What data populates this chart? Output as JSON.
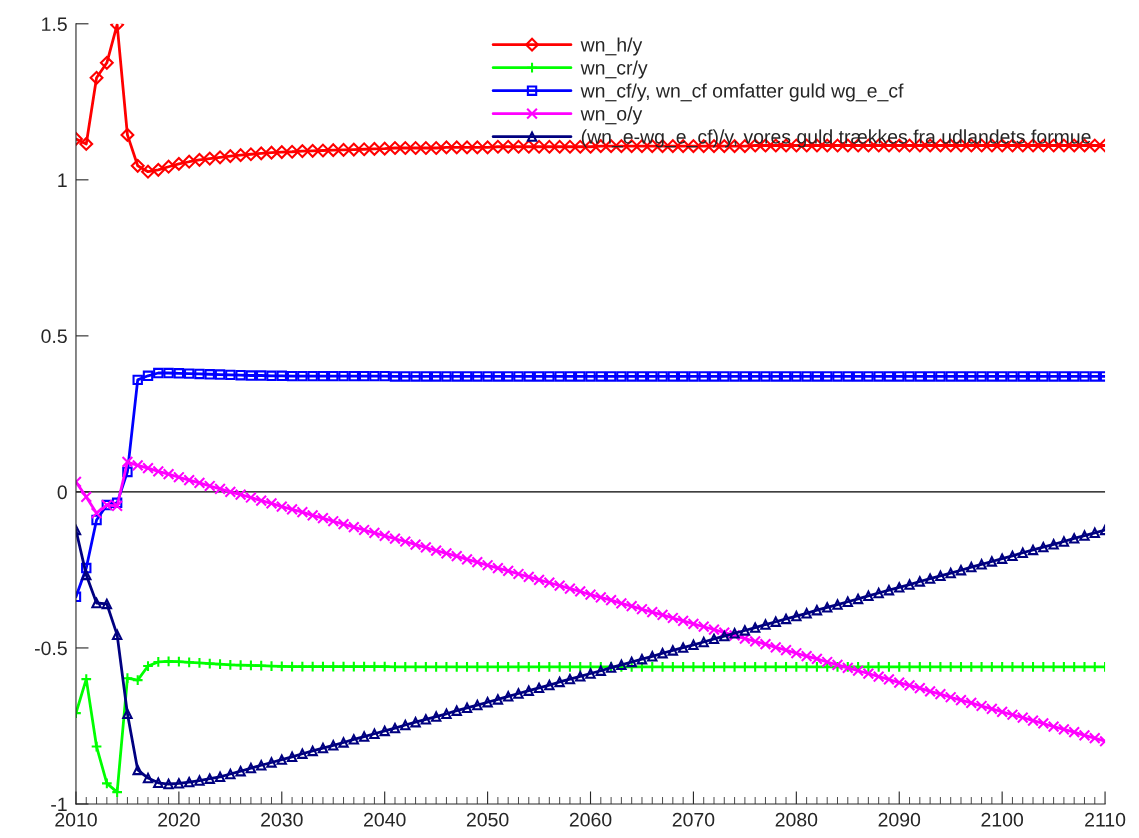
{
  "chart_data": {
    "type": "line",
    "x": [
      2010,
      2011,
      2012,
      2013,
      2014,
      2015,
      2016,
      2017,
      2018,
      2019,
      2020,
      2021,
      2022,
      2023,
      2024,
      2025,
      2026,
      2027,
      2028,
      2029,
      2030,
      2031,
      2032,
      2033,
      2034,
      2035,
      2036,
      2037,
      2038,
      2039,
      2040,
      2041,
      2042,
      2043,
      2044,
      2045,
      2046,
      2047,
      2048,
      2049,
      2050,
      2051,
      2052,
      2053,
      2054,
      2055,
      2056,
      2057,
      2058,
      2059,
      2060,
      2061,
      2062,
      2063,
      2064,
      2065,
      2066,
      2067,
      2068,
      2069,
      2070,
      2071,
      2072,
      2073,
      2074,
      2075,
      2076,
      2077,
      2078,
      2079,
      2080,
      2081,
      2082,
      2083,
      2084,
      2085,
      2086,
      2087,
      2088,
      2089,
      2090,
      2091,
      2092,
      2093,
      2094,
      2095,
      2096,
      2097,
      2098,
      2099,
      2100,
      2101,
      2102,
      2103,
      2104,
      2105,
      2106,
      2107,
      2108,
      2109,
      2110
    ],
    "series": [
      {
        "name": "wn_h/y",
        "color": "#ff0000",
        "marker": "diamond",
        "values": [
          1.131,
          1.115,
          1.327,
          1.375,
          1.497,
          1.144,
          1.045,
          1.026,
          1.032,
          1.042,
          1.051,
          1.058,
          1.064,
          1.068,
          1.072,
          1.076,
          1.079,
          1.082,
          1.085,
          1.087,
          1.089,
          1.09,
          1.092,
          1.093,
          1.094,
          1.095,
          1.096,
          1.097,
          1.098,
          1.099,
          1.1,
          1.102,
          1.102,
          1.102,
          1.102,
          1.102,
          1.104,
          1.104,
          1.104,
          1.104,
          1.104,
          1.106,
          1.106,
          1.106,
          1.106,
          1.106,
          1.106,
          1.106,
          1.106,
          1.106,
          1.106,
          1.108,
          1.108,
          1.108,
          1.108,
          1.108,
          1.108,
          1.108,
          1.108,
          1.108,
          1.108,
          1.108,
          1.108,
          1.108,
          1.108,
          1.108,
          1.11,
          1.11,
          1.11,
          1.11,
          1.11,
          1.11,
          1.11,
          1.11,
          1.11,
          1.11,
          1.11,
          1.11,
          1.11,
          1.11,
          1.11,
          1.11,
          1.11,
          1.11,
          1.11,
          1.11,
          1.11,
          1.11,
          1.11,
          1.11,
          1.11,
          1.11,
          1.11,
          1.11,
          1.11,
          1.11,
          1.11,
          1.11,
          1.11,
          1.11,
          1.11
        ]
      },
      {
        "name": "wn_cr/y",
        "color": "#00ff00",
        "marker": "plus",
        "values": [
          -0.709,
          -0.6,
          -0.816,
          -0.934,
          -0.962,
          -0.597,
          -0.603,
          -0.558,
          -0.545,
          -0.543,
          -0.544,
          -0.546,
          -0.548,
          -0.55,
          -0.552,
          -0.554,
          -0.555,
          -0.556,
          -0.557,
          -0.558,
          -0.559,
          -0.56,
          -0.56,
          -0.56,
          -0.56,
          -0.56,
          -0.56,
          -0.56,
          -0.56,
          -0.56,
          -0.56,
          -0.561,
          -0.561,
          -0.561,
          -0.561,
          -0.561,
          -0.561,
          -0.561,
          -0.561,
          -0.561,
          -0.561,
          -0.561,
          -0.561,
          -0.561,
          -0.561,
          -0.561,
          -0.561,
          -0.561,
          -0.561,
          -0.561,
          -0.561,
          -0.561,
          -0.561,
          -0.561,
          -0.561,
          -0.561,
          -0.561,
          -0.561,
          -0.561,
          -0.561,
          -0.561,
          -0.561,
          -0.561,
          -0.561,
          -0.561,
          -0.561,
          -0.561,
          -0.561,
          -0.561,
          -0.561,
          -0.561,
          -0.561,
          -0.561,
          -0.561,
          -0.561,
          -0.561,
          -0.561,
          -0.561,
          -0.561,
          -0.561,
          -0.561,
          -0.561,
          -0.561,
          -0.561,
          -0.561,
          -0.561,
          -0.561,
          -0.561,
          -0.561,
          -0.561,
          -0.561,
          -0.561,
          -0.561,
          -0.561,
          -0.561,
          -0.561,
          -0.561,
          -0.561,
          -0.561,
          -0.561,
          -0.561
        ]
      },
      {
        "name": "wn_cf/y, wn_cf omfatter guld wg_e_cf",
        "color": "#0000ff",
        "marker": "square",
        "values": [
          -0.336,
          -0.244,
          -0.09,
          -0.042,
          -0.035,
          0.064,
          0.359,
          0.372,
          0.381,
          0.381,
          0.38,
          0.379,
          0.378,
          0.377,
          0.376,
          0.375,
          0.374,
          0.373,
          0.373,
          0.372,
          0.372,
          0.371,
          0.371,
          0.371,
          0.371,
          0.371,
          0.371,
          0.371,
          0.371,
          0.371,
          0.371,
          0.37,
          0.37,
          0.37,
          0.37,
          0.37,
          0.37,
          0.37,
          0.37,
          0.37,
          0.37,
          0.37,
          0.37,
          0.37,
          0.37,
          0.37,
          0.37,
          0.37,
          0.37,
          0.37,
          0.37,
          0.37,
          0.37,
          0.37,
          0.37,
          0.37,
          0.37,
          0.37,
          0.37,
          0.37,
          0.37,
          0.37,
          0.37,
          0.37,
          0.37,
          0.37,
          0.37,
          0.37,
          0.37,
          0.37,
          0.37,
          0.37,
          0.37,
          0.37,
          0.37,
          0.37,
          0.37,
          0.37,
          0.37,
          0.37,
          0.37,
          0.37,
          0.37,
          0.37,
          0.37,
          0.37,
          0.37,
          0.37,
          0.37,
          0.37,
          0.37,
          0.37,
          0.37,
          0.37,
          0.37,
          0.37,
          0.37,
          0.37,
          0.37,
          0.37,
          0.37
        ]
      },
      {
        "name": "wn_o/y",
        "color": "#ff00ff",
        "marker": "cross",
        "values": [
          0.032,
          -0.016,
          -0.068,
          -0.042,
          -0.045,
          0.096,
          0.085,
          0.076,
          0.066,
          0.057,
          0.047,
          0.038,
          0.029,
          0.019,
          0.01,
          0.0,
          -0.009,
          -0.018,
          -0.028,
          -0.037,
          -0.047,
          -0.056,
          -0.065,
          -0.075,
          -0.084,
          -0.094,
          -0.103,
          -0.113,
          -0.122,
          -0.131,
          -0.141,
          -0.15,
          -0.159,
          -0.169,
          -0.178,
          -0.188,
          -0.197,
          -0.206,
          -0.216,
          -0.225,
          -0.235,
          -0.244,
          -0.253,
          -0.263,
          -0.272,
          -0.282,
          -0.291,
          -0.3,
          -0.31,
          -0.319,
          -0.329,
          -0.338,
          -0.347,
          -0.357,
          -0.366,
          -0.376,
          -0.385,
          -0.394,
          -0.404,
          -0.413,
          -0.423,
          -0.432,
          -0.441,
          -0.451,
          -0.46,
          -0.47,
          -0.479,
          -0.488,
          -0.498,
          -0.507,
          -0.517,
          -0.526,
          -0.535,
          -0.545,
          -0.554,
          -0.564,
          -0.573,
          -0.582,
          -0.592,
          -0.601,
          -0.611,
          -0.62,
          -0.629,
          -0.639,
          -0.648,
          -0.658,
          -0.667,
          -0.676,
          -0.686,
          -0.695,
          -0.705,
          -0.714,
          -0.723,
          -0.733,
          -0.742,
          -0.752,
          -0.761,
          -0.77,
          -0.78,
          -0.789,
          -0.799
        ]
      },
      {
        "name": "(wn_e-wg_e_cf)/y, vores guld trækkes fra udlandets formue",
        "color": "#000080",
        "marker": "triangle",
        "values": [
          -0.122,
          -0.266,
          -0.356,
          -0.359,
          -0.458,
          -0.711,
          -0.891,
          -0.917,
          -0.932,
          -0.936,
          -0.934,
          -0.93,
          -0.925,
          -0.919,
          -0.913,
          -0.904,
          -0.895,
          -0.885,
          -0.876,
          -0.867,
          -0.858,
          -0.849,
          -0.839,
          -0.83,
          -0.821,
          -0.812,
          -0.803,
          -0.793,
          -0.784,
          -0.775,
          -0.766,
          -0.757,
          -0.747,
          -0.738,
          -0.729,
          -0.72,
          -0.711,
          -0.701,
          -0.692,
          -0.683,
          -0.674,
          -0.665,
          -0.655,
          -0.646,
          -0.637,
          -0.628,
          -0.619,
          -0.609,
          -0.6,
          -0.591,
          -0.582,
          -0.573,
          -0.563,
          -0.554,
          -0.545,
          -0.536,
          -0.527,
          -0.517,
          -0.508,
          -0.499,
          -0.49,
          -0.481,
          -0.471,
          -0.462,
          -0.453,
          -0.444,
          -0.435,
          -0.425,
          -0.416,
          -0.407,
          -0.398,
          -0.389,
          -0.379,
          -0.37,
          -0.361,
          -0.352,
          -0.343,
          -0.333,
          -0.324,
          -0.315,
          -0.306,
          -0.297,
          -0.287,
          -0.278,
          -0.269,
          -0.26,
          -0.251,
          -0.241,
          -0.232,
          -0.223,
          -0.214,
          -0.205,
          -0.195,
          -0.186,
          -0.177,
          -0.168,
          -0.159,
          -0.149,
          -0.14,
          -0.131,
          -0.122
        ]
      }
    ],
    "xlim": [
      2010,
      2110
    ],
    "xticks": [
      2010,
      2020,
      2030,
      2040,
      2050,
      2060,
      2070,
      2080,
      2090,
      2100,
      2110
    ],
    "ylim": [
      -1,
      1.5
    ],
    "yticks": [
      -1,
      -0.5,
      0,
      0.5,
      1,
      1.5
    ],
    "ref_lines": [
      {
        "axis": "y",
        "value": 0,
        "color": "#000000"
      }
    ],
    "legend": "top right",
    "grid": false,
    "line_style": "solid"
  }
}
